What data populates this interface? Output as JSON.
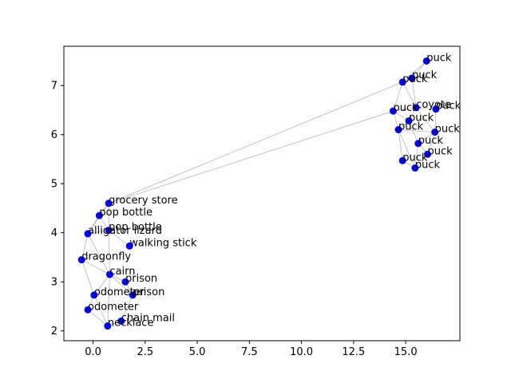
{
  "chart_data": {
    "type": "scatter",
    "title": "",
    "xlabel": "",
    "ylabel": "",
    "xlim": [
      -1.4,
      17.6
    ],
    "ylim": [
      1.8,
      7.8
    ],
    "x_ticks": [
      0.0,
      2.5,
      5.0,
      7.5,
      10.0,
      12.5,
      15.0
    ],
    "x_tick_labels": [
      "0.0",
      "2.5",
      "5.0",
      "7.5",
      "10.0",
      "12.5",
      "15.0"
    ],
    "y_ticks": [
      2,
      3,
      4,
      5,
      6,
      7
    ],
    "y_tick_labels": [
      "2",
      "3",
      "4",
      "5",
      "6",
      "7"
    ],
    "grid": false,
    "legend": "none",
    "colors": {
      "points": "#0000ff",
      "edges": "#a0a0a0",
      "axes": "#000000"
    },
    "points": [
      {
        "label": "grocery store",
        "x": 0.75,
        "y": 4.6
      },
      {
        "label": "pop bottle",
        "x": 0.3,
        "y": 4.35
      },
      {
        "label": "pop bottle",
        "x": 0.75,
        "y": 4.05
      },
      {
        "label": "alligator lizard",
        "x": -0.25,
        "y": 3.98
      },
      {
        "label": "walking stick",
        "x": 1.75,
        "y": 3.73
      },
      {
        "label": "dragonfly",
        "x": -0.55,
        "y": 3.45
      },
      {
        "label": "cairn",
        "x": 0.8,
        "y": 3.15
      },
      {
        "label": "prison",
        "x": 1.55,
        "y": 3.0
      },
      {
        "label": "odometer",
        "x": 0.05,
        "y": 2.73
      },
      {
        "label": "prison",
        "x": 1.9,
        "y": 2.73
      },
      {
        "label": "odometer",
        "x": -0.25,
        "y": 2.43
      },
      {
        "label": "chain mail",
        "x": 1.35,
        "y": 2.2
      },
      {
        "label": "necklace",
        "x": 0.7,
        "y": 2.1
      },
      {
        "label": "puck",
        "x": 16.0,
        "y": 7.5
      },
      {
        "label": "puck",
        "x": 15.3,
        "y": 7.15
      },
      {
        "label": "puck",
        "x": 14.85,
        "y": 7.07
      },
      {
        "label": "coyote",
        "x": 15.5,
        "y": 6.55
      },
      {
        "label": "puck",
        "x": 16.45,
        "y": 6.52
      },
      {
        "label": "puck",
        "x": 14.4,
        "y": 6.48
      },
      {
        "label": "puck",
        "x": 15.15,
        "y": 6.28
      },
      {
        "label": "puck",
        "x": 14.65,
        "y": 6.1
      },
      {
        "label": "puck",
        "x": 16.4,
        "y": 6.05
      },
      {
        "label": "puck",
        "x": 15.6,
        "y": 5.82
      },
      {
        "label": "puck",
        "x": 16.05,
        "y": 5.6
      },
      {
        "label": "puck",
        "x": 14.85,
        "y": 5.47
      },
      {
        "label": "puck",
        "x": 15.45,
        "y": 5.32
      }
    ],
    "edges": [
      [
        0,
        1
      ],
      [
        0,
        2
      ],
      [
        0,
        3
      ],
      [
        0,
        15
      ],
      [
        0,
        18
      ],
      [
        1,
        2
      ],
      [
        1,
        3
      ],
      [
        2,
        3
      ],
      [
        2,
        4
      ],
      [
        2,
        6
      ],
      [
        3,
        5
      ],
      [
        3,
        6
      ],
      [
        5,
        6
      ],
      [
        5,
        8
      ],
      [
        6,
        7
      ],
      [
        6,
        8
      ],
      [
        7,
        9
      ],
      [
        8,
        10
      ],
      [
        8,
        12
      ],
      [
        10,
        12
      ],
      [
        11,
        12
      ],
      [
        11,
        9
      ],
      [
        6,
        12
      ],
      [
        9,
        6
      ],
      [
        13,
        14
      ],
      [
        13,
        15
      ],
      [
        14,
        15
      ],
      [
        14,
        16
      ],
      [
        15,
        16
      ],
      [
        15,
        18
      ],
      [
        16,
        17
      ],
      [
        16,
        19
      ],
      [
        18,
        19
      ],
      [
        18,
        20
      ],
      [
        19,
        20
      ],
      [
        19,
        22
      ],
      [
        20,
        21
      ],
      [
        20,
        24
      ],
      [
        21,
        22
      ],
      [
        21,
        23
      ],
      [
        22,
        23
      ],
      [
        22,
        25
      ],
      [
        23,
        25
      ],
      [
        24,
        25
      ],
      [
        17,
        21
      ],
      [
        16,
        21
      ],
      [
        18,
        16
      ],
      [
        20,
        25
      ]
    ]
  }
}
